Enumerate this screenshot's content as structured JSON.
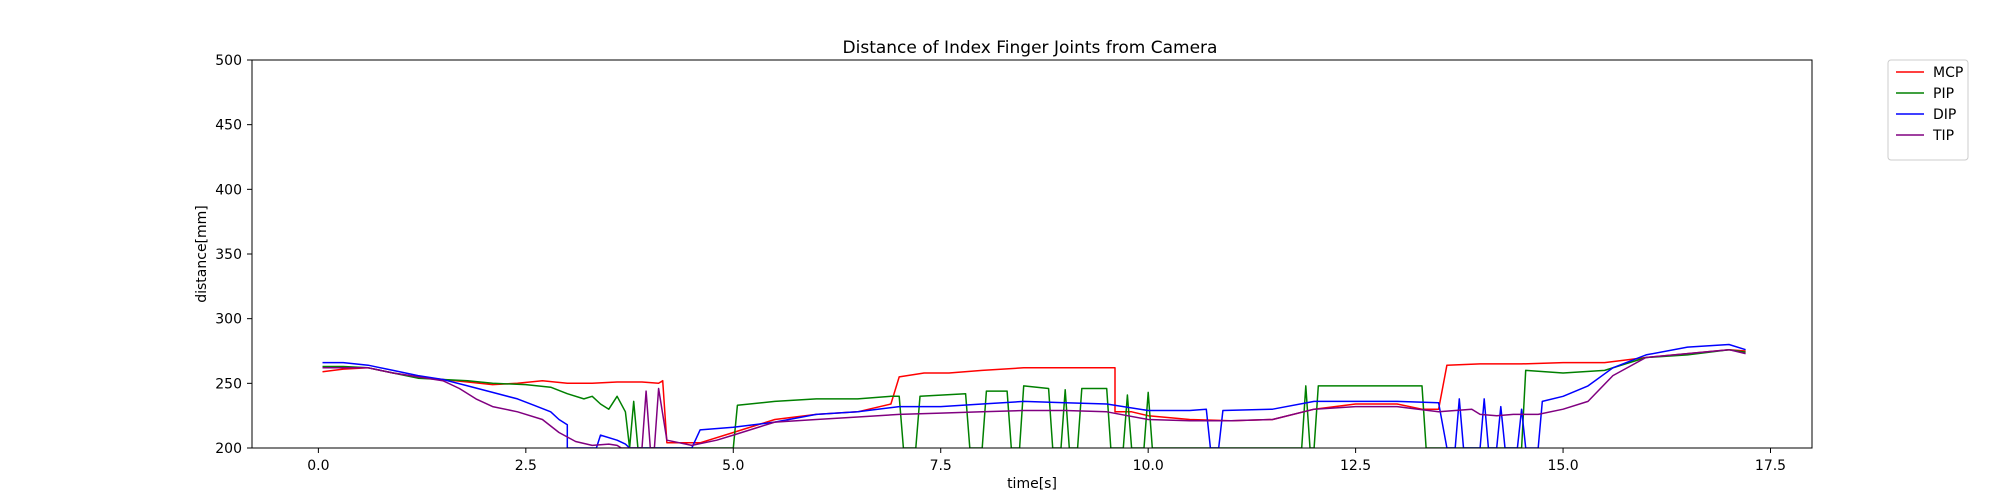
{
  "chart_data": {
    "type": "line",
    "title": "Distance of Index Finger Joints from Camera",
    "xlabel": "time[s]",
    "ylabel": "distance[mm]",
    "xlim": [
      -0.8,
      18.0
    ],
    "ylim": [
      200,
      500
    ],
    "xticks": [
      0.0,
      2.5,
      5.0,
      7.5,
      10.0,
      12.5,
      15.0,
      17.5
    ],
    "xtick_labels": [
      "0.0",
      "2.5",
      "5.0",
      "7.5",
      "10.0",
      "12.5",
      "15.0",
      "17.5"
    ],
    "yticks": [
      200,
      250,
      300,
      350,
      400,
      450,
      500
    ],
    "ytick_labels": [
      "200",
      "250",
      "300",
      "350",
      "400",
      "450",
      "500"
    ],
    "grid": false,
    "legend_position": "outside-top-right",
    "series": [
      {
        "name": "MCP",
        "color": "#ff0000",
        "points": [
          [
            0.05,
            259
          ],
          [
            0.3,
            261
          ],
          [
            0.6,
            262
          ],
          [
            0.9,
            258
          ],
          [
            1.2,
            255
          ],
          [
            1.5,
            253
          ],
          [
            1.8,
            251
          ],
          [
            2.1,
            249
          ],
          [
            2.4,
            250
          ],
          [
            2.7,
            252
          ],
          [
            3.0,
            250
          ],
          [
            3.3,
            250
          ],
          [
            3.6,
            251
          ],
          [
            3.9,
            251
          ],
          [
            4.1,
            250
          ],
          [
            4.15,
            252
          ],
          [
            4.2,
            204
          ],
          [
            4.6,
            204
          ],
          [
            5.0,
            212
          ],
          [
            5.5,
            222
          ],
          [
            6.0,
            226
          ],
          [
            6.5,
            228
          ],
          [
            6.9,
            234
          ],
          [
            7.0,
            255
          ],
          [
            7.3,
            258
          ],
          [
            7.6,
            258
          ],
          [
            8.0,
            260
          ],
          [
            8.5,
            262
          ],
          [
            9.0,
            262
          ],
          [
            9.3,
            262
          ],
          [
            9.6,
            262
          ],
          [
            9.6,
            228
          ],
          [
            9.8,
            228
          ],
          [
            10.0,
            225
          ],
          [
            10.5,
            222
          ],
          [
            11.0,
            221
          ],
          [
            11.5,
            222
          ],
          [
            12.0,
            230
          ],
          [
            12.5,
            234
          ],
          [
            13.0,
            234
          ],
          [
            13.3,
            230
          ],
          [
            13.5,
            230
          ],
          [
            13.6,
            264
          ],
          [
            14.0,
            265
          ],
          [
            14.5,
            265
          ],
          [
            15.0,
            266
          ],
          [
            15.5,
            266
          ],
          [
            16.0,
            270
          ],
          [
            16.5,
            273
          ],
          [
            17.0,
            276
          ],
          [
            17.2,
            275
          ]
        ]
      },
      {
        "name": "PIP",
        "color": "#008000",
        "points": [
          [
            0.05,
            263
          ],
          [
            0.3,
            263
          ],
          [
            0.6,
            262
          ],
          [
            0.9,
            258
          ],
          [
            1.2,
            254
          ],
          [
            1.5,
            253
          ],
          [
            1.8,
            252
          ],
          [
            2.1,
            250
          ],
          [
            2.5,
            249
          ],
          [
            2.8,
            247
          ],
          [
            3.0,
            242
          ],
          [
            3.2,
            238
          ],
          [
            3.3,
            240
          ],
          [
            3.4,
            234
          ],
          [
            3.5,
            230
          ],
          [
            3.6,
            240
          ],
          [
            3.7,
            228
          ],
          [
            3.75,
            200
          ],
          [
            3.8,
            236
          ],
          [
            3.85,
            200
          ],
          [
            5.0,
            200
          ],
          [
            5.05,
            233
          ],
          [
            5.5,
            236
          ],
          [
            6.0,
            238
          ],
          [
            6.5,
            238
          ],
          [
            6.9,
            240
          ],
          [
            7.0,
            240
          ],
          [
            7.05,
            200
          ],
          [
            7.2,
            200
          ],
          [
            7.25,
            240
          ],
          [
            7.8,
            242
          ],
          [
            7.85,
            200
          ],
          [
            8.0,
            200
          ],
          [
            8.05,
            244
          ],
          [
            8.3,
            244
          ],
          [
            8.35,
            200
          ],
          [
            8.45,
            200
          ],
          [
            8.5,
            248
          ],
          [
            8.8,
            246
          ],
          [
            8.85,
            200
          ],
          [
            8.95,
            200
          ],
          [
            9.0,
            245
          ],
          [
            9.05,
            200
          ],
          [
            9.15,
            200
          ],
          [
            9.2,
            246
          ],
          [
            9.5,
            246
          ],
          [
            9.55,
            200
          ],
          [
            9.7,
            200
          ],
          [
            9.75,
            241
          ],
          [
            9.8,
            200
          ],
          [
            9.95,
            200
          ],
          [
            10.0,
            243
          ],
          [
            10.05,
            200
          ],
          [
            11.85,
            200
          ],
          [
            11.9,
            248
          ],
          [
            11.95,
            200
          ],
          [
            12.0,
            200
          ],
          [
            12.05,
            248
          ],
          [
            13.3,
            248
          ],
          [
            13.35,
            200
          ],
          [
            14.5,
            200
          ],
          [
            14.55,
            260
          ],
          [
            15.0,
            258
          ],
          [
            15.5,
            260
          ],
          [
            16.0,
            270
          ],
          [
            16.5,
            272
          ],
          [
            17.0,
            276
          ],
          [
            17.2,
            274
          ]
        ]
      },
      {
        "name": "DIP",
        "color": "#0000ff",
        "points": [
          [
            0.05,
            266
          ],
          [
            0.3,
            266
          ],
          [
            0.6,
            264
          ],
          [
            0.9,
            260
          ],
          [
            1.2,
            256
          ],
          [
            1.5,
            253
          ],
          [
            1.8,
            248
          ],
          [
            2.1,
            243
          ],
          [
            2.4,
            238
          ],
          [
            2.6,
            233
          ],
          [
            2.8,
            228
          ],
          [
            2.9,
            222
          ],
          [
            3.0,
            218
          ],
          [
            3.0,
            200
          ],
          [
            3.35,
            200
          ],
          [
            3.4,
            210
          ],
          [
            3.6,
            206
          ],
          [
            3.7,
            203
          ],
          [
            3.75,
            200
          ],
          [
            4.5,
            200
          ],
          [
            4.6,
            214
          ],
          [
            5.0,
            216
          ],
          [
            5.5,
            220
          ],
          [
            6.0,
            226
          ],
          [
            6.5,
            228
          ],
          [
            7.0,
            232
          ],
          [
            7.5,
            232
          ],
          [
            8.0,
            234
          ],
          [
            8.5,
            236
          ],
          [
            9.0,
            235
          ],
          [
            9.5,
            234
          ],
          [
            10.0,
            229
          ],
          [
            10.5,
            229
          ],
          [
            10.7,
            230
          ],
          [
            10.75,
            200
          ],
          [
            10.85,
            200
          ],
          [
            10.9,
            229
          ],
          [
            11.5,
            230
          ],
          [
            12.0,
            236
          ],
          [
            12.5,
            236
          ],
          [
            13.0,
            236
          ],
          [
            13.5,
            235
          ],
          [
            13.6,
            200
          ],
          [
            13.7,
            200
          ],
          [
            13.75,
            238
          ],
          [
            13.8,
            200
          ],
          [
            14.0,
            200
          ],
          [
            14.05,
            238
          ],
          [
            14.1,
            200
          ],
          [
            14.2,
            200
          ],
          [
            14.25,
            232
          ],
          [
            14.3,
            200
          ],
          [
            14.45,
            200
          ],
          [
            14.5,
            230
          ],
          [
            14.55,
            200
          ],
          [
            14.7,
            200
          ],
          [
            14.75,
            236
          ],
          [
            15.0,
            240
          ],
          [
            15.3,
            248
          ],
          [
            15.6,
            262
          ],
          [
            16.0,
            272
          ],
          [
            16.5,
            278
          ],
          [
            17.0,
            280
          ],
          [
            17.2,
            276
          ]
        ]
      },
      {
        "name": "TIP",
        "color": "#800080",
        "points": [
          [
            0.05,
            262
          ],
          [
            0.3,
            262
          ],
          [
            0.6,
            262
          ],
          [
            0.9,
            258
          ],
          [
            1.2,
            255
          ],
          [
            1.5,
            252
          ],
          [
            1.7,
            246
          ],
          [
            1.9,
            238
          ],
          [
            2.1,
            232
          ],
          [
            2.4,
            228
          ],
          [
            2.7,
            222
          ],
          [
            2.9,
            212
          ],
          [
            3.1,
            205
          ],
          [
            3.3,
            202
          ],
          [
            3.5,
            203
          ],
          [
            3.6,
            202
          ],
          [
            3.65,
            200
          ],
          [
            3.9,
            200
          ],
          [
            3.95,
            244
          ],
          [
            4.0,
            200
          ],
          [
            4.05,
            200
          ],
          [
            4.1,
            246
          ],
          [
            4.2,
            206
          ],
          [
            4.5,
            202
          ],
          [
            4.8,
            206
          ],
          [
            5.0,
            210
          ],
          [
            5.5,
            220
          ],
          [
            6.0,
            222
          ],
          [
            6.5,
            224
          ],
          [
            7.0,
            226
          ],
          [
            7.5,
            227
          ],
          [
            8.0,
            228
          ],
          [
            8.5,
            229
          ],
          [
            9.0,
            229
          ],
          [
            9.5,
            228
          ],
          [
            10.0,
            222
          ],
          [
            10.5,
            221
          ],
          [
            11.0,
            221
          ],
          [
            11.5,
            222
          ],
          [
            12.0,
            230
          ],
          [
            12.5,
            232
          ],
          [
            13.0,
            232
          ],
          [
            13.5,
            228
          ],
          [
            13.9,
            230
          ],
          [
            14.0,
            226
          ],
          [
            14.2,
            225
          ],
          [
            14.4,
            226
          ],
          [
            14.7,
            226
          ],
          [
            15.0,
            230
          ],
          [
            15.3,
            236
          ],
          [
            15.6,
            256
          ],
          [
            16.0,
            270
          ],
          [
            16.5,
            273
          ],
          [
            17.0,
            276
          ],
          [
            17.2,
            273
          ]
        ]
      }
    ]
  }
}
